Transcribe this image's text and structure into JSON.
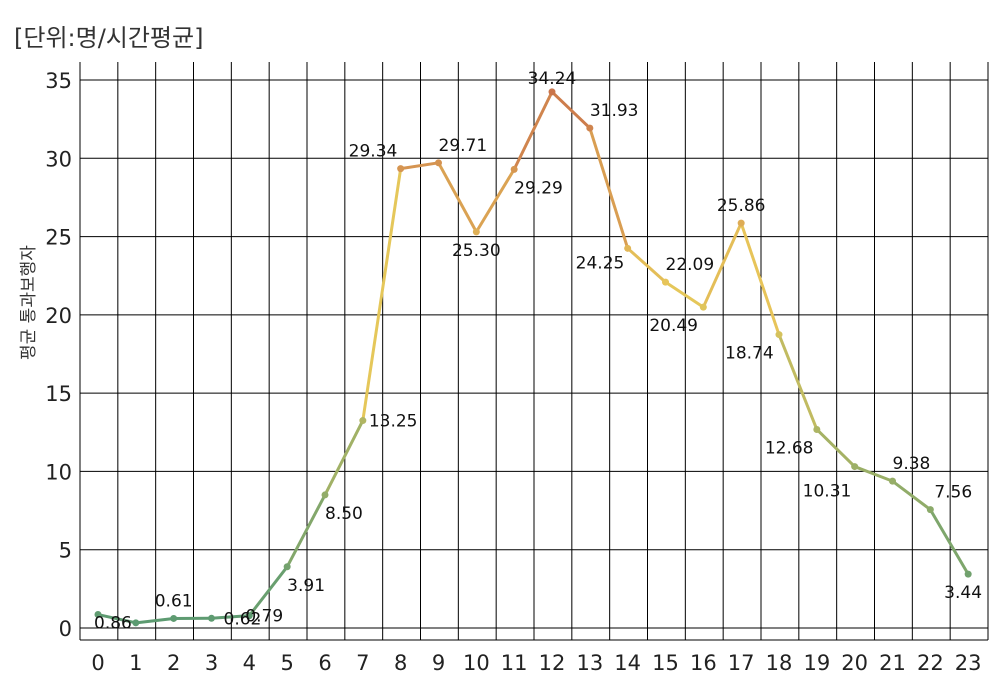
{
  "chart_data": {
    "type": "line",
    "title": "",
    "unit_note": "[단위:명/시간평균]",
    "xlabel": "",
    "ylabel": "평균 통과보행자",
    "x": [
      0,
      1,
      2,
      3,
      4,
      5,
      6,
      7,
      8,
      9,
      10,
      11,
      12,
      13,
      14,
      15,
      16,
      17,
      18,
      19,
      20,
      21,
      22,
      23
    ],
    "values": [
      0.86,
      0.33,
      0.61,
      0.62,
      0.79,
      3.91,
      8.5,
      13.25,
      29.34,
      29.71,
      25.3,
      29.29,
      34.24,
      31.93,
      24.25,
      22.09,
      20.49,
      25.86,
      18.74,
      12.68,
      10.31,
      9.38,
      7.56,
      3.44
    ],
    "data_labels": [
      "0.86",
      "",
      "0.61",
      "0.62",
      "0.79",
      "3.91",
      "8.50",
      "13.25",
      "29.34",
      "29.71",
      "25.30",
      "29.29",
      "34.24",
      "31.93",
      "24.25",
      "22.09",
      "20.49",
      "25.86",
      "18.74",
      "12.68",
      "10.31",
      "9.38",
      "7.56",
      "3.44"
    ],
    "ylim": [
      0,
      35
    ],
    "yticks": [
      0,
      5,
      10,
      15,
      20,
      25,
      30,
      35
    ],
    "grid": true,
    "color_scale": {
      "low": "#5a9a72",
      "mid": "#e8c85a",
      "high": "#c8704a"
    }
  }
}
